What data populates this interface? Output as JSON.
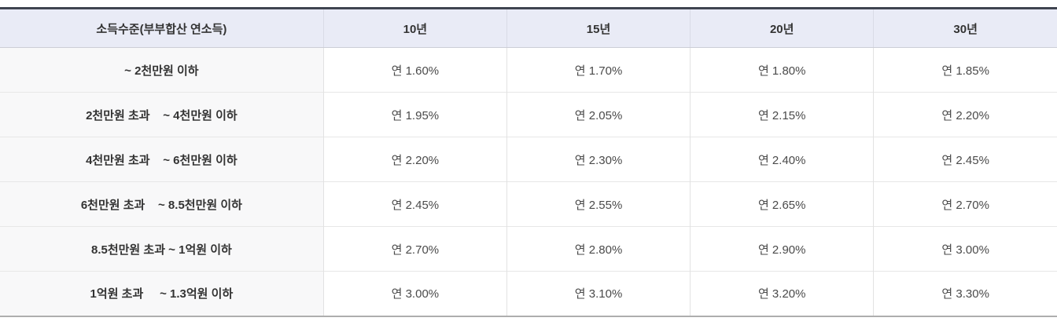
{
  "table": {
    "header": {
      "income_label": "소득수준(부부합산 연소득)",
      "terms": [
        "10년",
        "15년",
        "20년",
        "30년"
      ]
    },
    "rows": [
      {
        "income": "~ 2천만원 이하",
        "rates": [
          "연 1.60%",
          "연 1.70%",
          "연 1.80%",
          "연 1.85%"
        ]
      },
      {
        "income": "2천만원 초과    ~ 4천만원 이하",
        "rates": [
          "연 1.95%",
          "연 2.05%",
          "연 2.15%",
          "연 2.20%"
        ]
      },
      {
        "income": "4천만원 초과    ~ 6천만원 이하",
        "rates": [
          "연 2.20%",
          "연 2.30%",
          "연 2.40%",
          "연 2.45%"
        ]
      },
      {
        "income": "6천만원 초과    ~ 8.5천만원 이하",
        "rates": [
          "연 2.45%",
          "연 2.55%",
          "연 2.65%",
          "연 2.70%"
        ]
      },
      {
        "income": "8.5천만원 초과 ~ 1억원 이하",
        "rates": [
          "연 2.70%",
          "연 2.80%",
          "연 2.90%",
          "연 3.00%"
        ]
      },
      {
        "income": "1억원 초과     ~ 1.3억원 이하",
        "rates": [
          "연 3.00%",
          "연 3.10%",
          "연 3.20%",
          "연 3.30%"
        ]
      }
    ],
    "colors": {
      "top_border": "#3f4450",
      "header_bg": "#e9ebf6",
      "income_col_bg": "#f8f8f9",
      "rate_cell_bg": "#ffffff",
      "bottom_border": "#aeaeae",
      "text": "#333333"
    }
  }
}
